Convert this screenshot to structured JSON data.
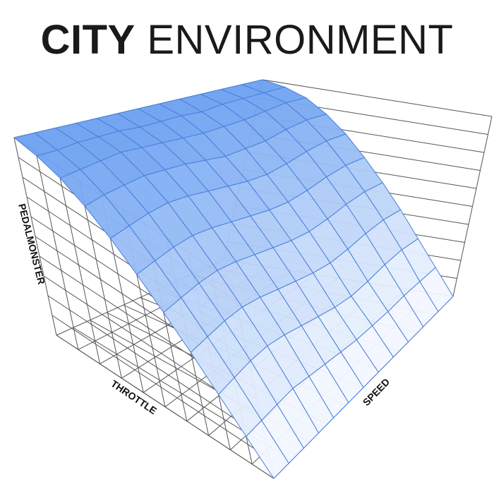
{
  "title": {
    "bold": "CITY",
    "regular": "ENVIRONMENT"
  },
  "chart_data": {
    "type": "surface",
    "title": "CITY ENVIRONMENT",
    "xlabel": "THROTTLE",
    "ylabel": "SPEED",
    "zlabel": "PEDALMONSTER",
    "zlim": [
      0,
      100
    ],
    "grid": true,
    "colors": {
      "low": "#f7faff",
      "high": "#6a9ff0",
      "mesh": "#4a7fdc",
      "box": "#555555"
    },
    "z": [
      [
        0,
        0,
        0,
        0,
        0,
        0,
        0,
        0,
        0,
        0,
        0,
        0,
        0
      ],
      [
        14,
        15,
        16,
        17,
        16,
        15,
        14,
        13,
        13,
        13,
        14,
        14,
        14
      ],
      [
        28,
        30,
        32,
        33,
        32,
        30,
        28,
        26,
        25,
        26,
        28,
        29,
        28
      ],
      [
        42,
        44,
        46,
        47,
        46,
        44,
        42,
        40,
        39,
        40,
        42,
        43,
        42
      ],
      [
        55,
        57,
        59,
        60,
        59,
        57,
        55,
        53,
        52,
        53,
        55,
        56,
        55
      ],
      [
        67,
        69,
        71,
        72,
        71,
        69,
        67,
        65,
        64,
        65,
        67,
        68,
        67
      ],
      [
        78,
        80,
        82,
        83,
        82,
        80,
        78,
        76,
        75,
        76,
        78,
        79,
        78
      ],
      [
        87,
        89,
        90,
        91,
        90,
        89,
        87,
        85,
        85,
        85,
        87,
        88,
        87
      ],
      [
        94,
        95,
        96,
        97,
        96,
        95,
        94,
        93,
        93,
        93,
        94,
        95,
        94
      ],
      [
        98,
        98,
        99,
        99,
        99,
        98,
        98,
        98,
        97,
        98,
        98,
        98,
        98
      ],
      [
        100,
        100,
        100,
        100,
        100,
        100,
        100,
        100,
        100,
        100,
        100,
        100,
        100
      ]
    ]
  }
}
